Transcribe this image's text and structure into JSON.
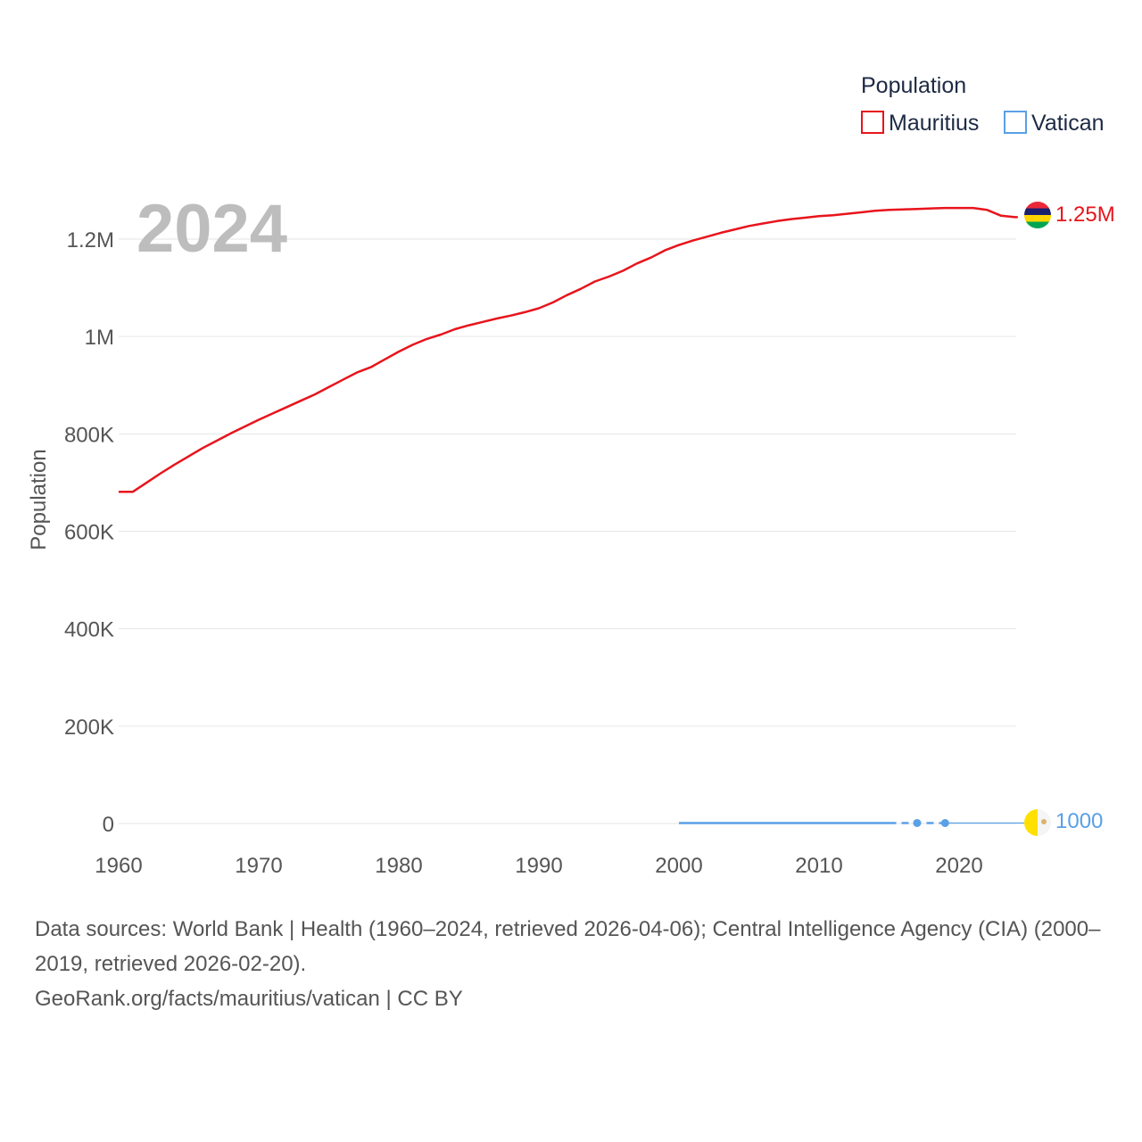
{
  "colors": {
    "mauritius": "#e8141c",
    "vatican": "#5aa0e6",
    "grid": "#e6e6e6",
    "text": "#555555",
    "year": "#bdbdbd"
  },
  "chart_data": {
    "type": "line",
    "title": "",
    "year_label": "2024",
    "xlabel": "",
    "ylabel": "Population",
    "xlim": [
      1960,
      2024
    ],
    "ylim": [
      0,
      1300000
    ],
    "x_ticks": [
      {
        "value": 1960,
        "label": "1960"
      },
      {
        "value": 1970,
        "label": "1970"
      },
      {
        "value": 1980,
        "label": "1980"
      },
      {
        "value": 1990,
        "label": "1990"
      },
      {
        "value": 2000,
        "label": "2000"
      },
      {
        "value": 2010,
        "label": "2010"
      },
      {
        "value": 2020,
        "label": "2020"
      }
    ],
    "y_ticks": [
      {
        "value": 0,
        "label": "0"
      },
      {
        "value": 200000,
        "label": "200K"
      },
      {
        "value": 400000,
        "label": "400K"
      },
      {
        "value": 600000,
        "label": "600K"
      },
      {
        "value": 800000,
        "label": "800K"
      },
      {
        "value": 1000000,
        "label": "1M"
      },
      {
        "value": 1200000,
        "label": "1.2M"
      }
    ],
    "legend": {
      "title": "Population",
      "position": "top-right",
      "entries": [
        "Mauritius",
        "Vatican"
      ]
    },
    "series": [
      {
        "name": "Mauritius",
        "color": "#e8141c",
        "end_label": "1.25M",
        "flag": "mauritius-flag",
        "points": [
          [
            1960,
            681000
          ],
          [
            1961,
            681000
          ],
          [
            1962,
            700000
          ],
          [
            1963,
            719000
          ],
          [
            1964,
            737000
          ],
          [
            1965,
            754000
          ],
          [
            1966,
            771000
          ],
          [
            1967,
            786000
          ],
          [
            1968,
            801000
          ],
          [
            1969,
            815000
          ],
          [
            1970,
            829000
          ],
          [
            1971,
            842000
          ],
          [
            1972,
            855000
          ],
          [
            1973,
            868000
          ],
          [
            1974,
            881000
          ],
          [
            1975,
            896000
          ],
          [
            1976,
            911000
          ],
          [
            1977,
            926000
          ],
          [
            1978,
            937000
          ],
          [
            1979,
            953000
          ],
          [
            1980,
            969000
          ],
          [
            1981,
            983000
          ],
          [
            1982,
            995000
          ],
          [
            1983,
            1004000
          ],
          [
            1984,
            1015000
          ],
          [
            1985,
            1023000
          ],
          [
            1986,
            1030000
          ],
          [
            1987,
            1037000
          ],
          [
            1988,
            1043000
          ],
          [
            1989,
            1050000
          ],
          [
            1990,
            1058000
          ],
          [
            1991,
            1070000
          ],
          [
            1992,
            1085000
          ],
          [
            1993,
            1098000
          ],
          [
            1994,
            1113000
          ],
          [
            1995,
            1123000
          ],
          [
            1996,
            1135000
          ],
          [
            1997,
            1150000
          ],
          [
            1998,
            1162000
          ],
          [
            1999,
            1177000
          ],
          [
            2000,
            1188000
          ],
          [
            2001,
            1197000
          ],
          [
            2002,
            1205000
          ],
          [
            2003,
            1213000
          ],
          [
            2004,
            1220000
          ],
          [
            2005,
            1227000
          ],
          [
            2006,
            1232000
          ],
          [
            2007,
            1237000
          ],
          [
            2008,
            1241000
          ],
          [
            2009,
            1244000
          ],
          [
            2010,
            1247000
          ],
          [
            2011,
            1249000
          ],
          [
            2012,
            1252000
          ],
          [
            2013,
            1255000
          ],
          [
            2014,
            1258000
          ],
          [
            2015,
            1260000
          ],
          [
            2016,
            1261000
          ],
          [
            2017,
            1262000
          ],
          [
            2018,
            1263000
          ],
          [
            2019,
            1264000
          ],
          [
            2020,
            1264000
          ],
          [
            2021,
            1264000
          ],
          [
            2022,
            1260000
          ],
          [
            2023,
            1248000
          ],
          [
            2024,
            1245000
          ]
        ]
      },
      {
        "name": "Vatican",
        "color": "#5aa0e6",
        "end_label": "1000",
        "flag": "vatican-flag",
        "solid_points": [
          [
            2000,
            890
          ],
          [
            2005,
            890
          ],
          [
            2010,
            840
          ],
          [
            2015,
            1000
          ]
        ],
        "dashed_points": [
          [
            2015,
            1000
          ],
          [
            2017,
            1000
          ],
          [
            2019,
            1000
          ]
        ],
        "markers": [
          [
            2017,
            1000
          ],
          [
            2019,
            1000
          ]
        ],
        "extension_points": [
          [
            2019,
            1000
          ],
          [
            2024,
            1000
          ]
        ]
      }
    ]
  },
  "footer": {
    "sources": "Data sources: World Bank | Health (1960–2024, retrieved 2026-04-06); Central Intelligence Agency (CIA) (2000–2019, retrieved 2026-02-20).",
    "attribution": "GeoRank.org/facts/mauritius/vatican | CC BY"
  }
}
